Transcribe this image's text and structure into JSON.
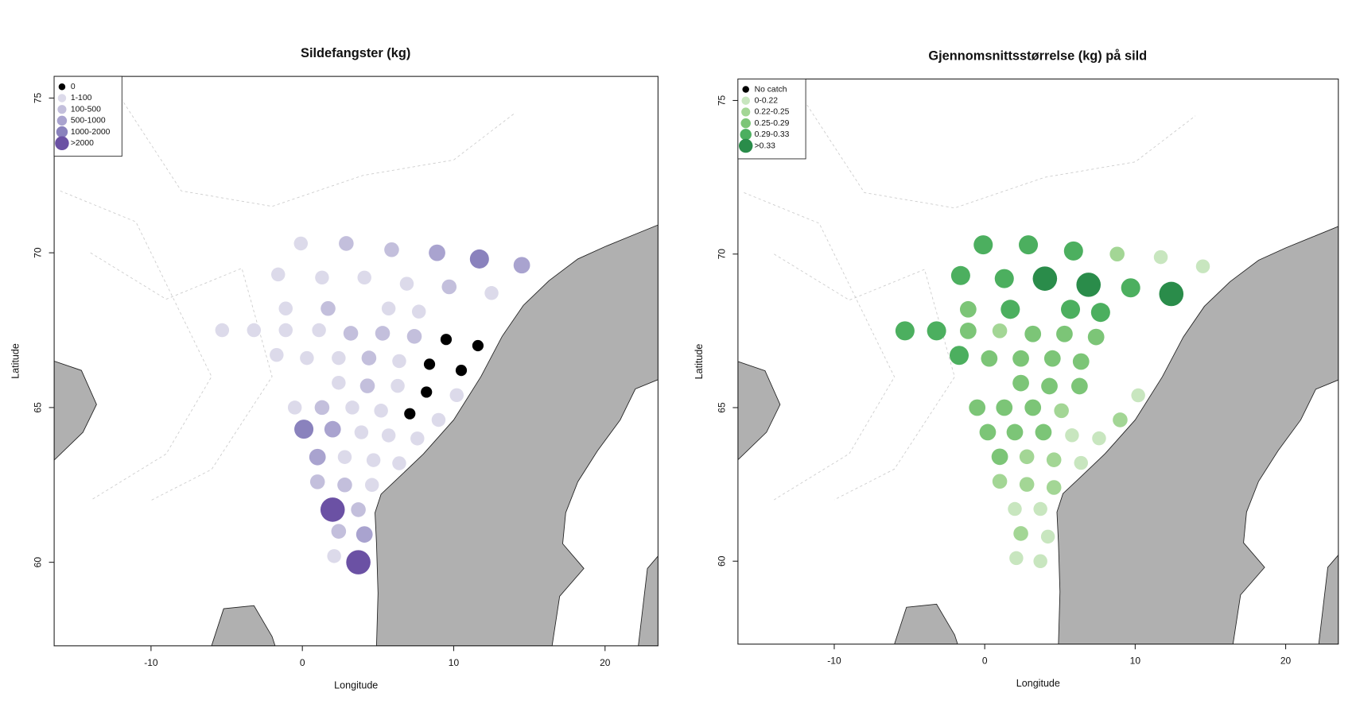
{
  "chart_data": [
    {
      "type": "scatter",
      "title": "Sildefangster (kg)",
      "x_label": "Longitude",
      "y_label": "Latitude",
      "xlim": [
        -16.4,
        23.5
      ],
      "ylim": [
        57.3,
        75.7
      ],
      "xticks": [
        -10,
        0,
        10,
        20
      ],
      "yticks": [
        60,
        65,
        70,
        75
      ],
      "legend_position": "topleft",
      "series": [
        {
          "name": "0",
          "color": "#000000",
          "x": [
            9.5,
            11.6,
            8.4,
            10.5,
            8.2,
            7.1
          ],
          "values": [
            67.2,
            67.0,
            66.4,
            66.2,
            65.5,
            64.8
          ]
        },
        {
          "name": "1-100",
          "color": "#dcdaea",
          "x": [
            -0.1,
            -1.6,
            1.3,
            4.1,
            6.9,
            12.5,
            -1.1,
            5.7,
            7.7,
            -5.3,
            -3.2,
            -1.1,
            1.1,
            -1.7,
            0.3,
            2.4,
            6.4,
            2.4,
            6.3,
            10.2,
            -0.5,
            3.3,
            5.2,
            9.0,
            3.9,
            5.7,
            7.6,
            2.8,
            4.7,
            6.4,
            4.6,
            2.1
          ],
          "values": [
            70.3,
            69.3,
            69.2,
            69.2,
            69.0,
            68.7,
            68.2,
            68.2,
            68.1,
            67.5,
            67.5,
            67.5,
            67.5,
            66.7,
            66.6,
            66.6,
            66.5,
            65.8,
            65.7,
            65.4,
            65.0,
            65.0,
            64.9,
            64.6,
            64.2,
            64.1,
            64.0,
            63.4,
            63.3,
            63.2,
            62.5,
            60.2
          ]
        },
        {
          "name": "100-500",
          "color": "#c3bfdc",
          "x": [
            2.9,
            5.9,
            9.7,
            1.7,
            3.2,
            5.3,
            7.4,
            4.4,
            4.3,
            1.3,
            1.0,
            2.8,
            3.7,
            2.4
          ],
          "values": [
            70.3,
            70.1,
            68.9,
            68.2,
            67.4,
            67.4,
            67.3,
            66.6,
            65.7,
            65.0,
            62.6,
            62.5,
            61.7,
            61.0
          ]
        },
        {
          "name": "500-1000",
          "color": "#a9a3cf",
          "x": [
            8.9,
            14.5,
            2.0,
            1.0,
            4.1
          ],
          "values": [
            70.0,
            69.6,
            64.3,
            63.4,
            60.9
          ]
        },
        {
          "name": "1000-2000",
          "color": "#8a82bd",
          "x": [
            11.7,
            0.1
          ],
          "values": [
            69.8,
            64.3
          ]
        },
        {
          "name": ">2000",
          "color": "#6b51a4",
          "x": [
            2.0,
            3.7
          ],
          "values": [
            61.7,
            60.0
          ]
        }
      ]
    },
    {
      "type": "scatter",
      "title": "Gjennomsnittsstørrelse (kg) på sild",
      "x_label": "Longitude",
      "y_label": "Latitude",
      "xlim": [
        -16.4,
        23.5
      ],
      "ylim": [
        57.3,
        75.7
      ],
      "xticks": [
        -10,
        0,
        10,
        20
      ],
      "yticks": [
        60,
        65,
        70,
        75
      ],
      "legend_position": "topleft",
      "series": [
        {
          "name": "No catch",
          "color": "#000000",
          "x": [],
          "values": []
        },
        {
          "name": "0-0.22",
          "color": "#c8e6bf",
          "x": [
            11.7,
            14.5,
            10.2,
            5.8,
            7.6,
            6.4,
            2.0,
            3.7,
            4.2,
            2.1,
            3.7
          ],
          "values": [
            69.9,
            69.6,
            65.4,
            64.1,
            64.0,
            63.2,
            61.7,
            61.7,
            60.8,
            60.1,
            60.0
          ]
        },
        {
          "name": "0.22-0.25",
          "color": "#a3d695",
          "x": [
            8.8,
            1.0,
            5.1,
            9.0,
            2.8,
            4.6,
            1.0,
            2.8,
            4.6,
            2.4
          ],
          "values": [
            70.0,
            67.5,
            64.9,
            64.6,
            63.4,
            63.3,
            62.6,
            62.5,
            62.4,
            60.9
          ]
        },
        {
          "name": "0.25-0.29",
          "color": "#7cc577",
          "x": [
            -1.1,
            -1.1,
            3.2,
            5.3,
            7.4,
            0.3,
            2.4,
            4.5,
            6.4,
            2.4,
            4.3,
            6.3,
            -0.5,
            1.3,
            3.2,
            0.2,
            2.0,
            3.9,
            1.0
          ],
          "values": [
            68.2,
            67.5,
            67.4,
            67.4,
            67.3,
            66.6,
            66.6,
            66.6,
            66.5,
            65.8,
            65.7,
            65.7,
            65.0,
            65.0,
            65.0,
            64.2,
            64.2,
            64.2,
            63.4
          ]
        },
        {
          "name": "0.29-0.33",
          "color": "#4caf5f",
          "x": [
            -0.1,
            2.9,
            5.9,
            -1.6,
            1.3,
            9.7,
            1.7,
            5.7,
            7.7,
            -5.3,
            -3.2,
            -1.7
          ],
          "values": [
            70.3,
            70.3,
            70.1,
            69.3,
            69.2,
            68.9,
            68.2,
            68.2,
            68.1,
            67.5,
            67.5,
            66.7
          ]
        },
        {
          "name": ">0.33",
          "color": "#2a8c4a",
          "x": [
            4.0,
            6.9,
            12.4
          ],
          "values": [
            69.2,
            69.0,
            68.7
          ]
        }
      ]
    }
  ]
}
